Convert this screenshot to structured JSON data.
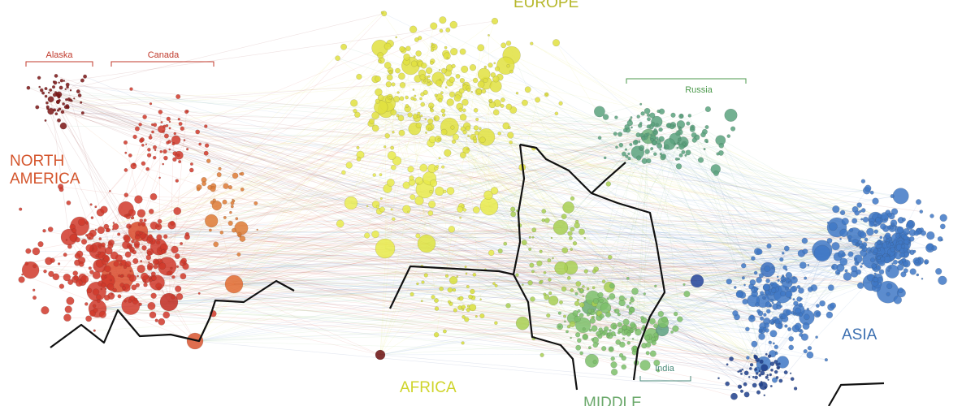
{
  "regions": [
    {
      "key": "north_america",
      "lines": [
        "NORTH",
        "AMERICA"
      ],
      "color": "#d4552c"
    },
    {
      "key": "europe",
      "lines": [
        "EUROPE"
      ],
      "color": "#b6b72a"
    },
    {
      "key": "africa",
      "lines": [
        "AFRICA"
      ],
      "color": "#cfd42a"
    },
    {
      "key": "middle",
      "lines": [
        "MIDDLE"
      ],
      "color": "#6aa86a"
    },
    {
      "key": "asia",
      "lines": [
        "ASIA"
      ],
      "color": "#3c6fb0"
    }
  ],
  "subregions": [
    {
      "key": "alaska",
      "label": "Alaska",
      "color": "#c0392b"
    },
    {
      "key": "canada",
      "label": "Canada",
      "color": "#c0392b"
    },
    {
      "key": "russia",
      "label": "Russia",
      "color": "#4d9a4d"
    },
    {
      "key": "india",
      "label": "India",
      "color": "#4a8a7a"
    }
  ],
  "colors": {
    "north_america": "#d0382a",
    "north_america_dark": "#7a1414",
    "europe": "#e0e040",
    "africa": "#d8df3a",
    "middle": "#7dc06a",
    "russia": "#5aa27e",
    "asia": "#3f78c6",
    "asia_dark": "#1f3f8c",
    "boundary": "#111111"
  }
}
